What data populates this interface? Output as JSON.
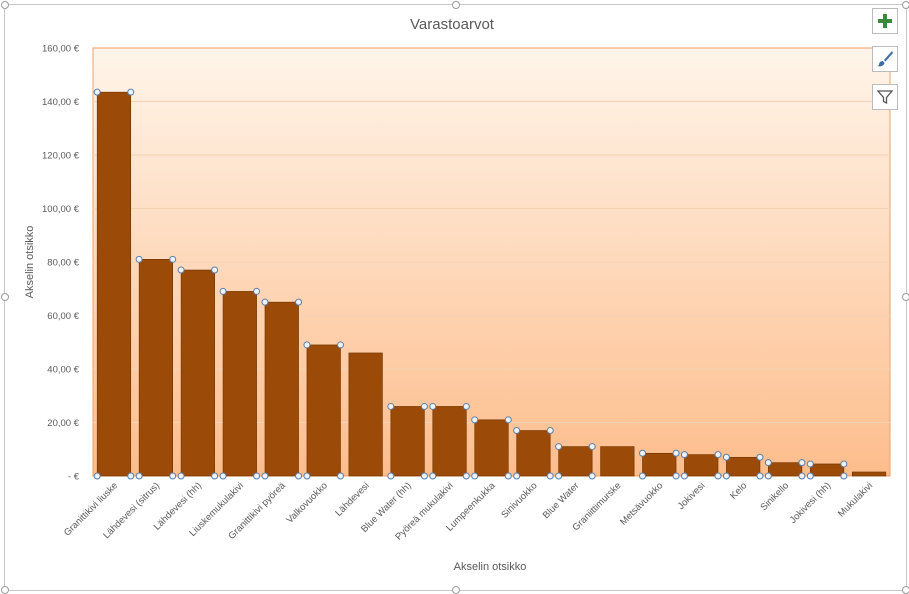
{
  "chart_data": {
    "type": "bar",
    "title": "Varastoarvot",
    "xlabel": "Akselin otsikko",
    "ylabel": "Akselin otsikko",
    "ylim": [
      0,
      160
    ],
    "yticks": [
      0,
      20,
      40,
      60,
      80,
      100,
      120,
      140,
      160
    ],
    "ytick_labels": [
      "-  €",
      "20,00 €",
      "40,00 €",
      "60,00 €",
      "80,00 €",
      "100,00 €",
      "120,00 €",
      "140,00 €",
      "160,00 €"
    ],
    "categories": [
      "Granittikivi liuske",
      "Lähdevesi (sitrus)",
      "Lähdevesi (hh)",
      "Liuskemukulakivi",
      "Granittikivi pyöreä",
      "Valkovuokko",
      "Lähdevesi",
      "Blue Water (hh)",
      "Pyöreä mukulakivi",
      "Lumpeenkukka",
      "Sinivuokko",
      "Blue Water",
      "Graniittimurske",
      "Metsävuokko",
      "Jokivesi",
      "Kelo",
      "Sinikello",
      "Jokivesi (hh)",
      "Mukulakivi"
    ],
    "values": [
      143.5,
      81,
      77,
      69,
      65,
      49,
      46,
      26,
      26,
      21,
      17,
      11,
      11,
      8.5,
      8,
      7,
      5,
      4.5,
      1.5
    ],
    "selected_series_markers": true,
    "unselected_categories": [
      "Lähdevesi",
      "Graniittimurske",
      "Mukulakivi"
    ],
    "grid": true,
    "legend": "none",
    "colors": {
      "bar_fill": "#9b4a07",
      "bar_stroke": "#6e3300",
      "plot_bg_top": "#fff5ea",
      "plot_bg_bottom": "#fdbd8c",
      "plot_border": "#f0a060",
      "gridline": "#f4d3b4",
      "axis_text": "#595959",
      "title_text": "#595959",
      "plus_icon": "#3b8a3b",
      "marker_stroke": "#5a7da8"
    }
  },
  "side_buttons": [
    {
      "name": "chart-elements-button",
      "icon": "plus-icon"
    },
    {
      "name": "chart-styles-button",
      "icon": "brush-icon"
    },
    {
      "name": "chart-filters-button",
      "icon": "filter-icon"
    }
  ]
}
